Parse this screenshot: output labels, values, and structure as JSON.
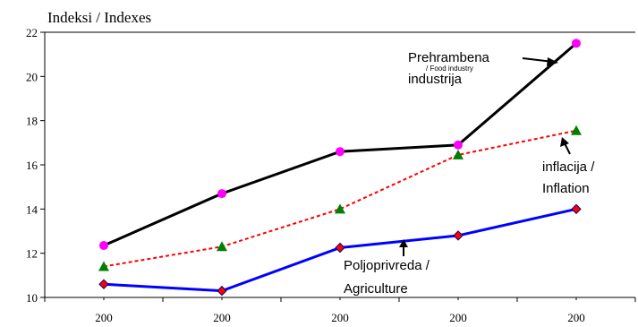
{
  "chart_data": {
    "type": "line",
    "ylabel": "Indeksi / Indexes",
    "ylim": [
      10,
      22
    ],
    "yticks": [
      10,
      12,
      14,
      16,
      18,
      20,
      22
    ],
    "categories": [
      "200",
      "200",
      "200",
      "200",
      "200"
    ],
    "grid": false,
    "series": [
      {
        "key": "food",
        "color": "#000000",
        "marker": "circle",
        "marker_color": "#ff00ff",
        "dashed": false,
        "values": [
          12.35,
          14.7,
          16.6,
          16.9,
          21.5
        ]
      },
      {
        "key": "inflation",
        "color": "#ff0000",
        "marker": "triangle",
        "marker_color": "#008000",
        "dashed": true,
        "values": [
          11.4,
          12.3,
          14.0,
          16.45,
          17.55
        ]
      },
      {
        "key": "agriculture",
        "color": "#0000ff",
        "marker": "diamond",
        "marker_color": "#ff0000",
        "dashed": false,
        "values": [
          10.6,
          10.3,
          12.25,
          12.8,
          14.0
        ]
      }
    ],
    "annotations": {
      "food_line1": "Prehrambena",
      "food_small": "/ Food industry",
      "food_line2": "industrija",
      "inflation_line1": "inflacija /",
      "inflation_line2": "Inflation",
      "agri_line1": "Poljoprivreda /",
      "agri_line2": "Agriculture"
    }
  }
}
